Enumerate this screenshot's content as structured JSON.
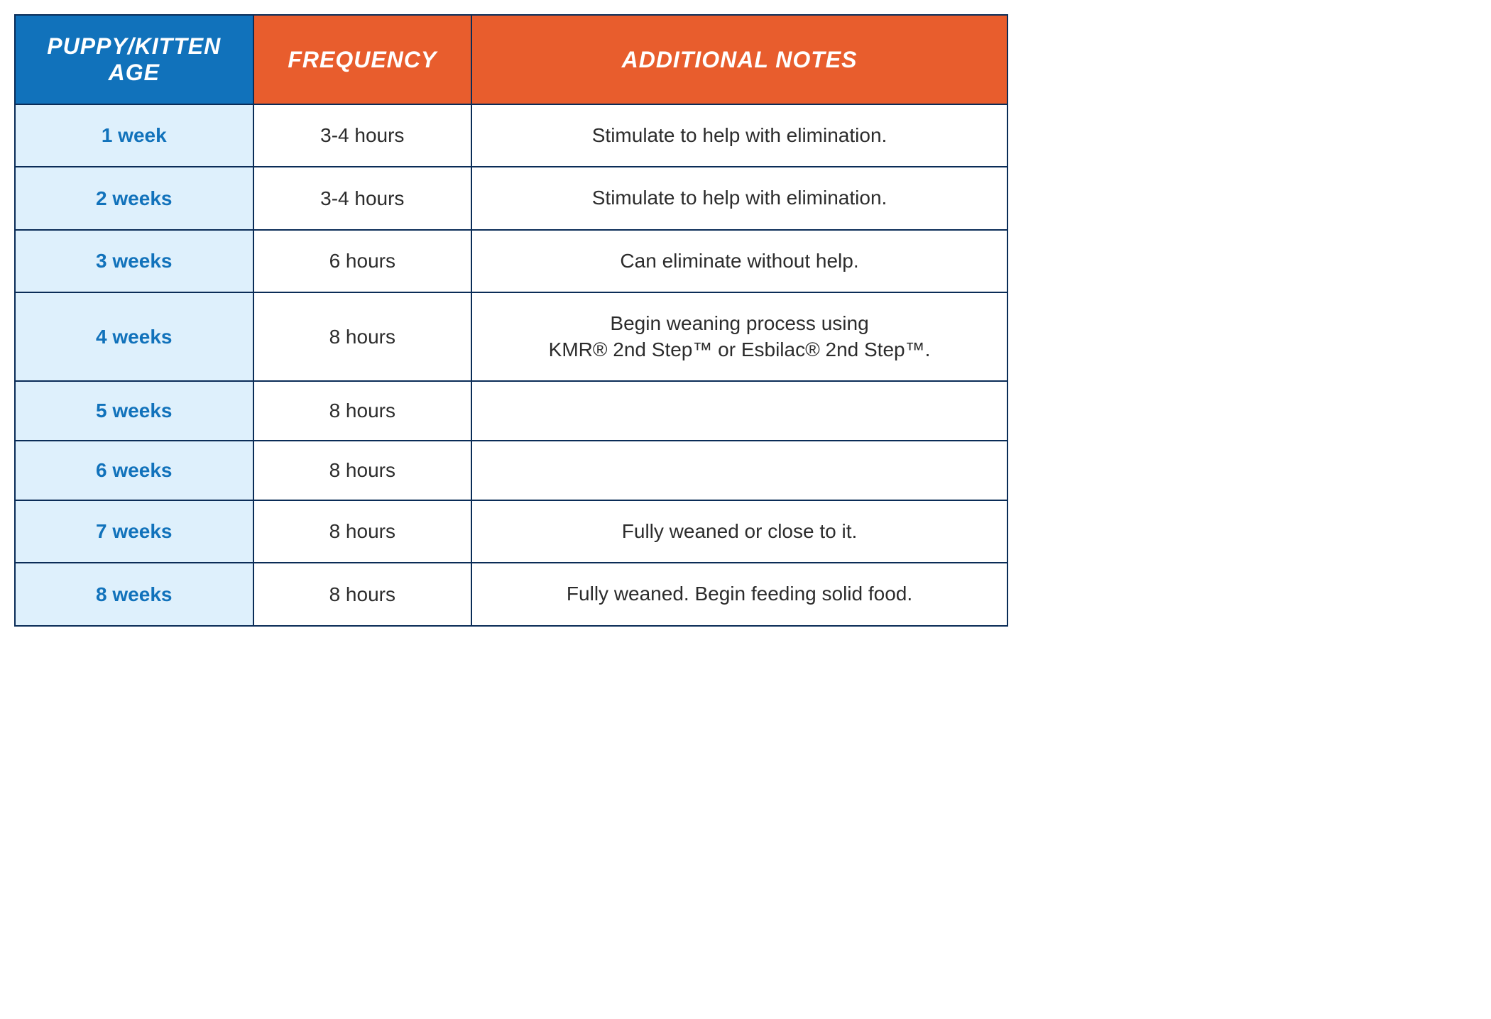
{
  "table": {
    "columns": [
      {
        "label": "PUPPY/KITTEN AGE",
        "bg": "#1172bb",
        "width": "24%"
      },
      {
        "label": "FREQUENCY",
        "bg": "#e85d2d",
        "width": "22%"
      },
      {
        "label": "ADDITIONAL NOTES",
        "bg": "#e85d2d",
        "width": "54%"
      }
    ],
    "age_cell_bg": "#def0fc",
    "age_cell_color": "#1172bb",
    "body_cell_bg": "#ffffff",
    "body_text_color": "#2c2c2c",
    "border_color": "#0a2c57",
    "header_fontsize": 32,
    "body_fontsize": 28,
    "rows": [
      {
        "age": "1 week",
        "frequency": "3-4 hours",
        "notes": "Stimulate to help with elimination."
      },
      {
        "age": "2 weeks",
        "frequency": "3-4 hours",
        "notes": "Stimulate to help with elimination."
      },
      {
        "age": "3 weeks",
        "frequency": "6 hours",
        "notes": "Can eliminate without help."
      },
      {
        "age": "4 weeks",
        "frequency": "8 hours",
        "notes": "Begin weaning process using\nKMR® 2nd Step™ or Esbilac® 2nd Step™."
      },
      {
        "age": "5 weeks",
        "frequency": "8 hours",
        "notes": ""
      },
      {
        "age": "6 weeks",
        "frequency": "8 hours",
        "notes": ""
      },
      {
        "age": "7 weeks",
        "frequency": "8 hours",
        "notes": "Fully weaned or close to it."
      },
      {
        "age": "8 weeks",
        "frequency": "8 hours",
        "notes": "Fully weaned. Begin feeding solid food."
      }
    ]
  }
}
